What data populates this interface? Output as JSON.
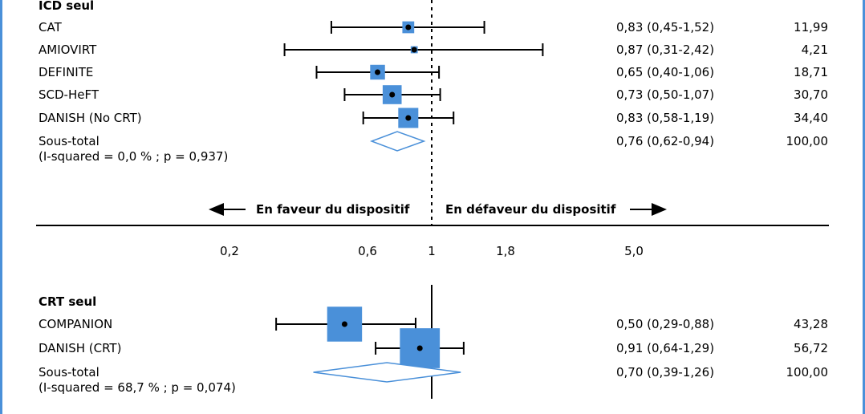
{
  "chart_data": {
    "type": "forest",
    "scale": "log",
    "axis_ticks": [
      {
        "label": "0,2",
        "value": 0.2
      },
      {
        "label": "0,6",
        "value": 0.6
      },
      {
        "label": "1",
        "value": 1
      },
      {
        "label": "1,8",
        "value": 1.8
      },
      {
        "label": "5,0",
        "value": 5.0
      }
    ],
    "favor_left_label": "En faveur du dispositif",
    "favor_right_label": "En défaveur du dispositif",
    "groups": [
      {
        "title": "ICD seul",
        "studies": [
          {
            "name": "CAT",
            "est": 0.83,
            "lo": 0.45,
            "hi": 1.52,
            "ci_text": "0,83 (0,45-1,52)",
            "weight": 11.99,
            "weight_text": "11,99"
          },
          {
            "name": "AMIOVIRT",
            "est": 0.87,
            "lo": 0.31,
            "hi": 2.42,
            "ci_text": "0,87 (0,31-2,42)",
            "weight": 4.21,
            "weight_text": "4,21"
          },
          {
            "name": "DEFINITE",
            "est": 0.65,
            "lo": 0.4,
            "hi": 1.06,
            "ci_text": "0,65 (0,40-1,06)",
            "weight": 18.71,
            "weight_text": "18,71"
          },
          {
            "name": "SCD-HeFT",
            "est": 0.73,
            "lo": 0.5,
            "hi": 1.07,
            "ci_text": "0,73 (0,50-1,07)",
            "weight": 30.7,
            "weight_text": "30,70"
          },
          {
            "name": "DANISH (No CRT)",
            "est": 0.83,
            "lo": 0.58,
            "hi": 1.19,
            "ci_text": "0,83 (0,58-1,19)",
            "weight": 34.4,
            "weight_text": "34,40"
          }
        ],
        "subtotal": {
          "label": "Sous-total",
          "het": "(I-squared = 0,0 % ; p = 0,937)",
          "est": 0.76,
          "lo": 0.62,
          "hi": 0.94,
          "ci_text": "0,76 (0,62-0,94)",
          "weight_text": "100,00"
        }
      },
      {
        "title": "CRT seul",
        "studies": [
          {
            "name": "COMPANION",
            "est": 0.5,
            "lo": 0.29,
            "hi": 0.88,
            "ci_text": "0,50 (0,29-0,88)",
            "weight": 43.28,
            "weight_text": "43,28"
          },
          {
            "name": "DANISH (CRT)",
            "est": 0.91,
            "lo": 0.64,
            "hi": 1.29,
            "ci_text": "0,91 (0,64-1,29)",
            "weight": 56.72,
            "weight_text": "56,72"
          }
        ],
        "subtotal": {
          "label": "Sous-total",
          "het": "(I-squared = 68,7 % ; p = 0,074)",
          "est": 0.7,
          "lo": 0.39,
          "hi": 1.26,
          "ci_text": "0,70 (0,39-1,26)",
          "weight_text": "100,00"
        }
      }
    ],
    "colors": {
      "marker": "#4a90d9",
      "diamond": "#4a90d9",
      "line": "#000000"
    }
  }
}
